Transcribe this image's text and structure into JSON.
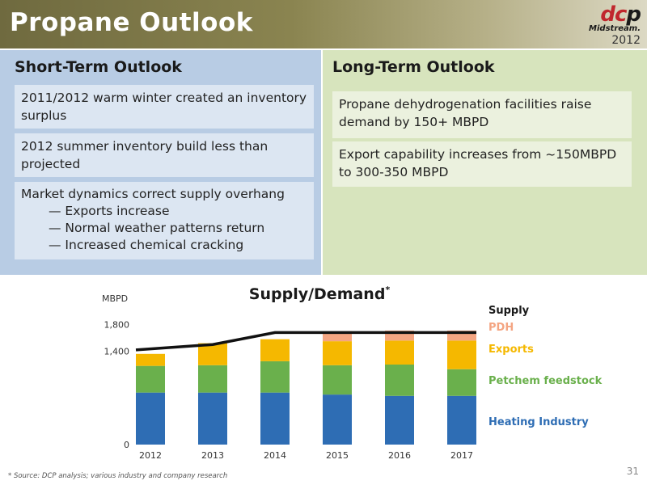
{
  "header": {
    "title": "Propane Outlook"
  },
  "logo": {
    "dcp_prefix": "dc",
    "dcp_suffix": "p",
    "midstream": "Midstream.",
    "year": "2012"
  },
  "short_term": {
    "heading": "Short-Term Outlook",
    "items": [
      {
        "text": "2011/2012 warm winter created an inventory surplus"
      },
      {
        "text": "2012 summer inventory build less than projected"
      },
      {
        "text": "Market dynamics correct supply overhang",
        "subitems": [
          "— Exports increase",
          "— Normal weather patterns return",
          "— Increased chemical cracking"
        ]
      }
    ]
  },
  "long_term": {
    "heading": "Long-Term Outlook",
    "items": [
      {
        "text": "Propane dehydrogenation facilities raise demand by 150+ MBPD"
      },
      {
        "text": "Export capability increases from ~150MBPD to 300-350 MBPD"
      }
    ]
  },
  "chart_data": {
    "type": "bar",
    "stacked": true,
    "title": "Supply/Demand",
    "title_marker": "*",
    "ylabel": "MBPD",
    "ylim": [
      0,
      2000
    ],
    "y_ticks": [
      {
        "value": 0,
        "label": "0"
      },
      {
        "value": 1400,
        "label": "1,400"
      },
      {
        "value": 1800,
        "label": "1,800"
      }
    ],
    "categories": [
      "2012",
      "2013",
      "2014",
      "2015",
      "2016",
      "2017"
    ],
    "series": [
      {
        "name": "Heating Industry",
        "color": "#2e6db4",
        "values": [
          780,
          780,
          780,
          750,
          730,
          730
        ]
      },
      {
        "name": "Petchem feedstock",
        "color": "#6ab04c",
        "values": [
          400,
          410,
          470,
          440,
          470,
          400
        ]
      },
      {
        "name": "Exports",
        "color": "#f5b800",
        "values": [
          180,
          330,
          330,
          360,
          360,
          430
        ]
      },
      {
        "name": "PDH",
        "color": "#f4a582",
        "values": [
          0,
          0,
          0,
          150,
          150,
          150
        ]
      }
    ],
    "supply_line": {
      "name": "Supply",
      "values": [
        1420,
        1500,
        1680,
        1680,
        1680,
        1680
      ]
    },
    "footnote": "* Source: DCP analysis; various industry and company research"
  },
  "page_number": "31"
}
